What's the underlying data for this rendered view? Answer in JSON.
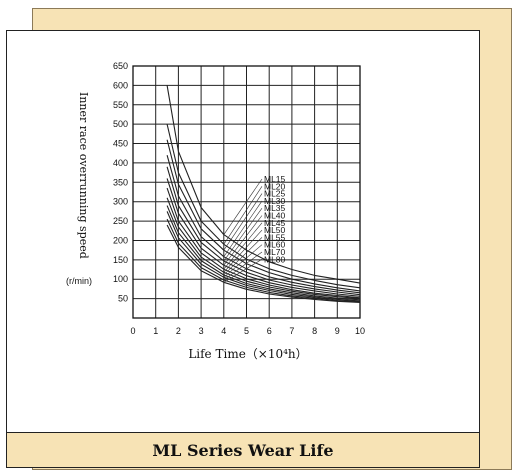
{
  "caption": "ML Series Wear Life",
  "chart_data": {
    "type": "line",
    "title": "",
    "xlabel": "Life Time（×10⁴h）",
    "ylabel": "Inner race overrunning speed",
    "yunit": "(r/min)",
    "xlim": [
      0,
      10
    ],
    "ylim": [
      0,
      650
    ],
    "xticks": [
      "0",
      "1",
      "2",
      "3",
      "4",
      "5",
      "6",
      "7",
      "8",
      "9",
      "10"
    ],
    "yticks": [
      "650",
      "600",
      "550",
      "500",
      "450",
      "400",
      "350",
      "300",
      "250",
      "200",
      "150",
      "100",
      "50"
    ],
    "grid": true,
    "legend_placement": "center-right",
    "series": [
      {
        "name": "ML15",
        "x": [
          1.5,
          2,
          3,
          4,
          5,
          6,
          7,
          8,
          9,
          10
        ],
        "y": [
          600,
          430,
          285,
          215,
          175,
          145,
          125,
          110,
          100,
          90
        ]
      },
      {
        "name": "ML20",
        "x": [
          1.5,
          2,
          3,
          4,
          5,
          6,
          7,
          8,
          9,
          10
        ],
        "y": [
          500,
          375,
          250,
          190,
          152,
          127,
          110,
          97,
          86,
          78
        ]
      },
      {
        "name": "ML25",
        "x": [
          1.5,
          2,
          3,
          4,
          5,
          6,
          7,
          8,
          9,
          10
        ],
        "y": [
          460,
          345,
          230,
          175,
          140,
          117,
          100,
          88,
          78,
          70
        ]
      },
      {
        "name": "ML30",
        "x": [
          1.5,
          2,
          3,
          4,
          5,
          6,
          7,
          8,
          9,
          10
        ],
        "y": [
          420,
          315,
          210,
          158,
          127,
          106,
          92,
          81,
          72,
          65
        ]
      },
      {
        "name": "ML35",
        "x": [
          1.5,
          2,
          3,
          4,
          5,
          6,
          7,
          8,
          9,
          10
        ],
        "y": [
          390,
          290,
          195,
          147,
          118,
          98,
          85,
          75,
          67,
          60
        ]
      },
      {
        "name": "ML40",
        "x": [
          1.5,
          2,
          3,
          4,
          5,
          6,
          7,
          8,
          9,
          10
        ],
        "y": [
          360,
          270,
          180,
          136,
          109,
          91,
          79,
          70,
          62,
          56
        ]
      },
      {
        "name": "ML45",
        "x": [
          1.5,
          2,
          3,
          4,
          5,
          6,
          7,
          8,
          9,
          10
        ],
        "y": [
          335,
          250,
          168,
          126,
          101,
          85,
          73,
          64,
          58,
          52
        ]
      },
      {
        "name": "ML50",
        "x": [
          1.5,
          2,
          3,
          4,
          5,
          6,
          7,
          8,
          9,
          10
        ],
        "y": [
          310,
          235,
          157,
          118,
          95,
          80,
          69,
          61,
          55,
          50
        ]
      },
      {
        "name": "ML55",
        "x": [
          1.5,
          2,
          3,
          4,
          5,
          6,
          7,
          8,
          9,
          10
        ],
        "y": [
          290,
          220,
          148,
          111,
          89,
          75,
          65,
          57,
          51,
          47
        ]
      },
      {
        "name": "ML60",
        "x": [
          1.5,
          2,
          3,
          4,
          5,
          6,
          7,
          8,
          9,
          10
        ],
        "y": [
          275,
          207,
          139,
          105,
          84,
          71,
          61,
          54,
          48,
          44
        ]
      },
      {
        "name": "ML70",
        "x": [
          1.5,
          2,
          3,
          4,
          5,
          6,
          7,
          8,
          9,
          10
        ],
        "y": [
          255,
          193,
          130,
          98,
          79,
          66,
          57,
          51,
          45,
          42
        ]
      },
      {
        "name": "ML80",
        "x": [
          1.5,
          2,
          3,
          4,
          5,
          6,
          7,
          8,
          9,
          10
        ],
        "y": [
          240,
          182,
          122,
          92,
          74,
          62,
          54,
          48,
          43,
          40
        ]
      }
    ]
  }
}
